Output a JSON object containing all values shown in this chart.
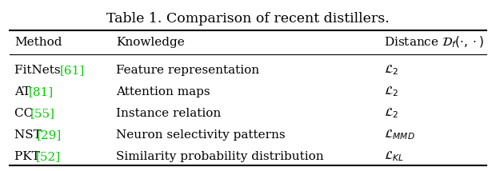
{
  "title": "Table 1. Comparison of recent distillers.",
  "col_headers": [
    "Method",
    "Knowledge",
    "Distance $\\mathcal{D}_f(\\cdot,\\cdot)$"
  ],
  "rows": [
    [
      "FitNets",
      "[61]",
      "Feature representation",
      "$\\mathcal{L}_2$"
    ],
    [
      "AT",
      "[81]",
      "Attention maps",
      "$\\mathcal{L}_2$"
    ],
    [
      "CC",
      "[55]",
      "Instance relation",
      "$\\mathcal{L}_2$"
    ],
    [
      "NST",
      "[29]",
      "Neuron selectivity patterns",
      "$\\mathcal{L}_{MMD}$"
    ],
    [
      "PKT",
      "[52]",
      "Similarity probability distribution",
      "$\\mathcal{L}_{KL}$"
    ]
  ],
  "cite_color": "#00cc00",
  "text_color": "#000000",
  "bg_color": "#ffffff",
  "title_fontsize": 12.5,
  "header_fontsize": 11,
  "row_fontsize": 11,
  "fig_width": 6.2,
  "fig_height": 2.14,
  "dpi": 100
}
